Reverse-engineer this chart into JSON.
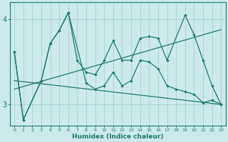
{
  "xlabel": "Humidex (Indice chaleur)",
  "background_color": "#cceaea",
  "grid_color": "#aad4d4",
  "line_color": "#1a7a6e",
  "xlim": [
    -0.5,
    23.5
  ],
  "ylim": [
    2.75,
    4.2
  ],
  "yticks": [
    3,
    4
  ],
  "xticks": [
    0,
    1,
    2,
    3,
    4,
    5,
    6,
    7,
    8,
    9,
    10,
    11,
    12,
    13,
    14,
    15,
    16,
    17,
    18,
    19,
    20,
    21,
    22,
    23
  ],
  "line1_x": [
    0,
    1,
    3,
    4,
    5,
    6,
    7,
    8,
    9,
    10,
    11,
    12,
    13,
    14,
    15,
    16,
    17,
    19,
    20,
    21,
    22,
    23
  ],
  "line1_y": [
    3.62,
    2.82,
    3.28,
    3.72,
    3.87,
    4.08,
    3.52,
    3.38,
    3.35,
    3.52,
    3.75,
    3.52,
    3.52,
    3.78,
    3.8,
    3.78,
    3.52,
    4.05,
    3.82,
    3.52,
    3.22,
    3.0
  ],
  "line2_x": [
    0,
    1,
    3,
    4,
    5,
    6,
    8,
    9,
    10,
    11,
    12,
    13,
    14,
    15,
    16,
    17,
    18,
    19,
    20,
    21,
    22,
    23
  ],
  "line2_y": [
    3.62,
    2.82,
    3.28,
    3.72,
    3.87,
    4.08,
    3.25,
    3.18,
    3.22,
    3.38,
    3.22,
    3.28,
    3.52,
    3.5,
    3.42,
    3.22,
    3.18,
    3.15,
    3.12,
    3.02,
    3.05,
    3.0
  ],
  "line3_x": [
    0,
    23
  ],
  "line3_y": [
    3.18,
    3.88
  ],
  "line4_x": [
    0,
    23
  ],
  "line4_y": [
    3.28,
    3.0
  ]
}
